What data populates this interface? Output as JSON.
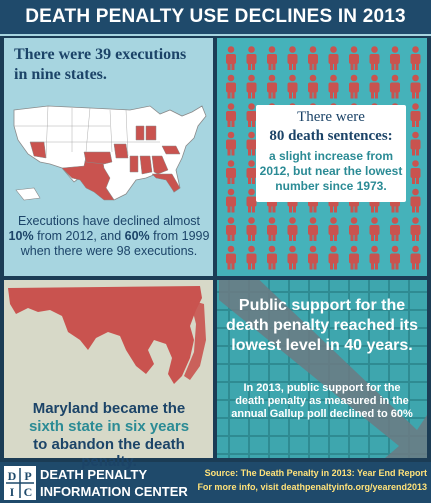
{
  "header": {
    "title": "DEATH PENALTY USE DECLINES IN 2013"
  },
  "executions": {
    "line1": "There were 39 executions",
    "line2": "in nine states.",
    "decline_pre": "Executions have declined almost",
    "decline_pct1": "10%",
    "decline_mid": "from 2012, and",
    "decline_pct2": "60%",
    "decline_post": "from 1999",
    "decline_last": "when there were 98 executions."
  },
  "sentences": {
    "line1": "There were",
    "line2": "80 death sentences:",
    "line3": "a slight increase from",
    "line4": "2012, but near the lowest",
    "line5": "number since 1973."
  },
  "maryland": {
    "line1": "Maryland became the",
    "line2": "sixth state in six years",
    "line3": "to abandon the death penalty."
  },
  "support": {
    "headline1": "Public support for the",
    "headline2": "death penalty reached its",
    "headline3": "lowest level in 40 years.",
    "detail1": "In 2013, public support for the",
    "detail2": "death penalty as measured in the",
    "detail3": "annual Gallup poll declined to 60%"
  },
  "footer": {
    "logo_letters": [
      "D",
      "P",
      "I",
      "C"
    ],
    "org_line1": "DEATH PENALTY",
    "org_line2": "INFORMATION CENTER",
    "source_line1": "Source: The Death Penalty in 2013: Year End Report",
    "source_line2": "For more info, visit deathpenaltyinfo.org/yearend2013"
  },
  "colors": {
    "header_bg": "#1f4a6b",
    "light_teal": "#a7d5e0",
    "teal": "#45b2ba",
    "figure_red": "#c9534f",
    "map_white": "#ffffff",
    "accent_yellow": "#ffe27a"
  }
}
